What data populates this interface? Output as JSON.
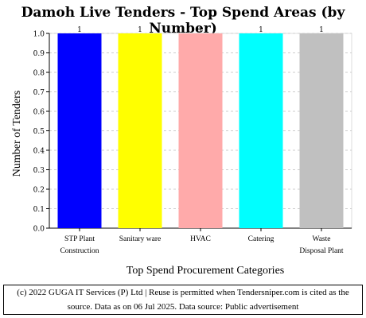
{
  "chart_data": {
    "type": "bar",
    "title": "Damoh Live Tenders - Top Spend Areas (by Number)",
    "xlabel": "Top Spend Procurement Categories",
    "ylabel": "Number of Tenders",
    "categories": [
      [
        "STP Plant",
        "Construction"
      ],
      [
        "Sanitary ware"
      ],
      [
        "HVAC"
      ],
      [
        "Catering"
      ],
      [
        "Waste",
        "Disposal Plant"
      ]
    ],
    "values": [
      1,
      1,
      1,
      1,
      1
    ],
    "data_labels": [
      "1",
      "1",
      "1",
      "1",
      "1"
    ],
    "colors": [
      "#0000ff",
      "#ffff00",
      "#ffaaaa",
      "#00ffff",
      "#c0c0c0"
    ],
    "ylim": [
      0,
      1.0
    ],
    "yticks": [
      "0.0",
      "0.1",
      "0.2",
      "0.3",
      "0.4",
      "0.5",
      "0.6",
      "0.7",
      "0.8",
      "0.9",
      "1.0"
    ],
    "grid": true
  },
  "footer": {
    "line1": "(c) 2022 GUGA IT Services (P) Ltd | Reuse is permitted when Tendersniper.com is cited as the",
    "line2": "source. Data as on 06 Jul 2025. Data source: Public advertisement"
  }
}
